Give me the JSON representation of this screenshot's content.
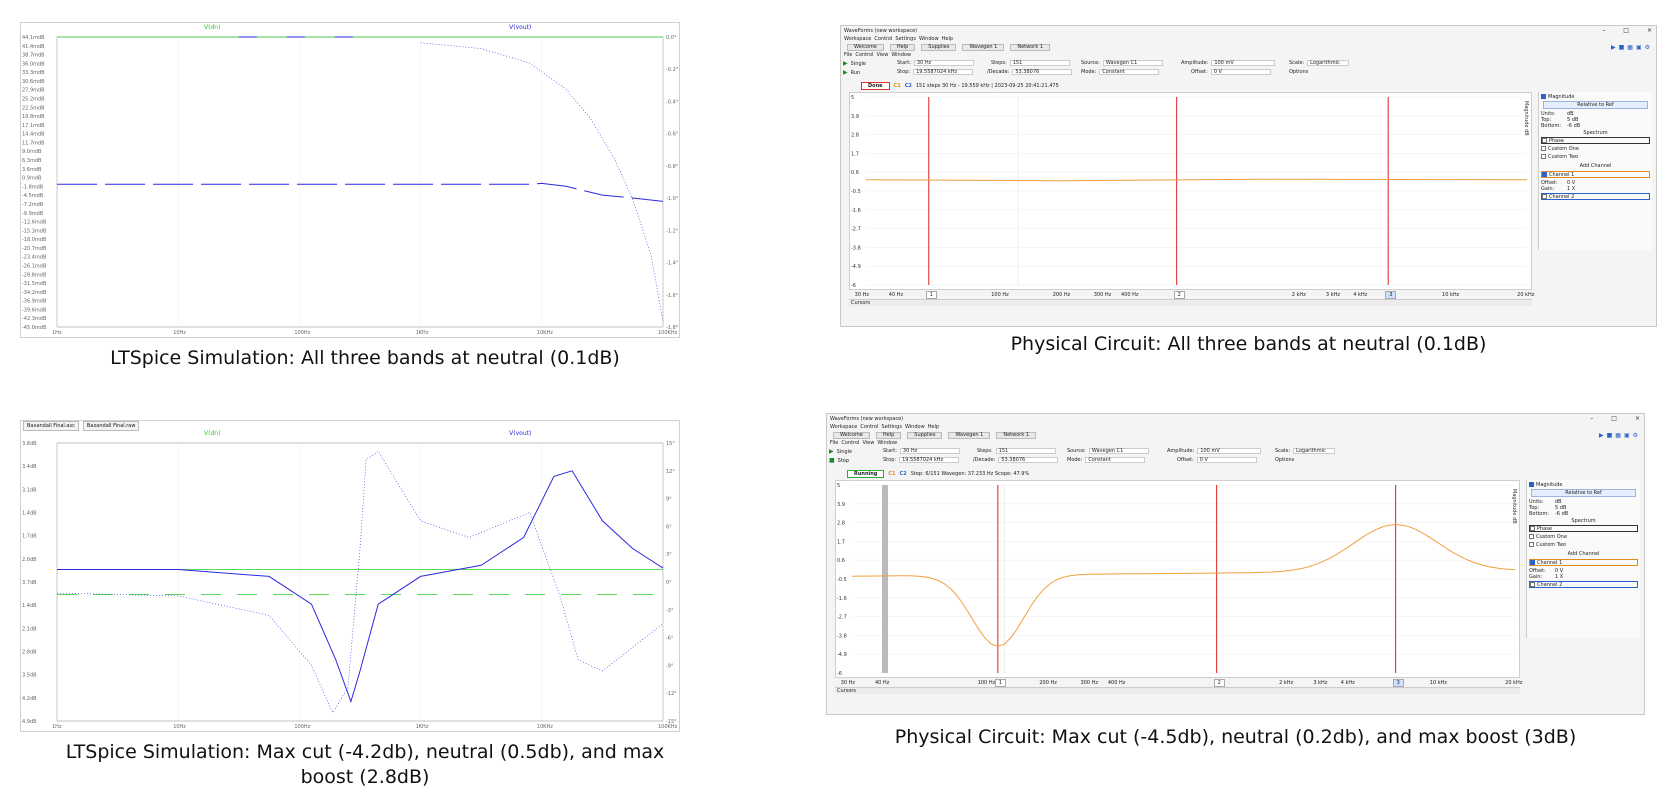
{
  "captions": {
    "top_left": "LTSpice Simulation: All three bands at neutral (0.1dB)",
    "top_right": "Physical Circuit: All three bands at neutral (0.1dB)",
    "bottom_left_line1": "LTSpice Simulation: Max cut (-4.2db), neutral (0.5db), and max",
    "bottom_left_line2": "boost (2.8dB)",
    "bottom_right": "Physical Circuit: Max cut (-4.5db), neutral (0.2db), and max boost (3dB)"
  },
  "lt1": {
    "legend_left": "V(dn)",
    "legend_right": "V(vout)",
    "y_ticks": [
      "44.1mdB",
      "41.4mdB",
      "38.7mdB",
      "36.0mdB",
      "33.3mdB",
      "30.6mdB",
      "27.9mdB",
      "25.2mdB",
      "22.5mdB",
      "19.8mdB",
      "17.1mdB",
      "14.4mdB",
      "11.7mdB",
      "9.0mdB",
      "6.3mdB",
      "3.6mdB",
      "0.9mdB",
      "-1.8mdB",
      "-4.5mdB",
      "-7.2mdB",
      "-9.9mdB",
      "-12.6mdB",
      "-15.3mdB",
      "-18.0mdB",
      "-20.7mdB",
      "-23.4mdB",
      "-26.1mdB",
      "-28.8mdB",
      "-31.5mdB",
      "-34.2mdB",
      "-36.9mdB",
      "-39.6mdB",
      "-42.3mdB",
      "-45.0mdB"
    ],
    "y2_ticks": [
      "0.0°",
      "-0.2°",
      "-0.4°",
      "-0.6°",
      "-0.8°",
      "-1.0°",
      "-1.2°",
      "-1.4°",
      "-1.6°",
      "-1.8°"
    ],
    "x_ticks": [
      "1Hz",
      "10Hz",
      "100Hz",
      "1KHz",
      "10KHz",
      "100KHz"
    ]
  },
  "lt2": {
    "tabs": [
      "Baxandall Final.asc",
      "Baxandall Final.raw"
    ],
    "legend_left": "V(dn)",
    "legend_right": "V(vout)",
    "y_ticks": [
      "3.8dB",
      "3.4dB",
      "3.1dB",
      "1.4dB",
      "1.7dB",
      "2.0dB",
      "3.7dB",
      "1.4dB",
      "2.1dB",
      "2.8dB",
      "3.5dB",
      "4.2dB",
      "4.9dB"
    ],
    "y2_ticks": [
      "15°",
      "12°",
      "9°",
      "6°",
      "3°",
      "0°",
      "-3°",
      "-6°",
      "-9°",
      "-12°",
      "-15°"
    ],
    "x_ticks": [
      "1Hz",
      "10Hz",
      "100Hz",
      "1KHz",
      "10KHz",
      "100KHz"
    ]
  },
  "wf_common": {
    "window_title": "WaveForms (new workspace)",
    "menu1": [
      "Workspace",
      "Control",
      "Settings",
      "Window",
      "Help"
    ],
    "tabs": [
      "Welcome",
      "Help",
      "Supplies",
      "Wavegen 1",
      "Network 1"
    ],
    "menu2": [
      "File",
      "Control",
      "View",
      "Window"
    ],
    "single": "Single",
    "start_label": "Start:",
    "start_val": "30 Hz",
    "stop_label": "Stop:",
    "stop_val": "19.5587024 kHz",
    "steps_label": "Steps:",
    "steps_val": "151",
    "decade_label": "/Decade:",
    "decade_val": "53.38076",
    "source_label": "Source:",
    "source_val": "Wavegen C1",
    "mode_label": "Mode:",
    "mode_val": "Constant",
    "amplitude_label": "Amplitude:",
    "amplitude_val": "100 mV",
    "offset_label": "Offset:",
    "offset_val": "0 V",
    "scale_label": "Scale:",
    "scale_val": "Logarithmic",
    "options": "Options",
    "y_ticks": [
      "5",
      "3.9",
      "2.8",
      "1.7",
      "0.6",
      "-0.5",
      "-1.6",
      "-2.7",
      "-3.8",
      "-4.9",
      "-6"
    ],
    "y_axis_label": "Magnitude dB",
    "x_ticks": [
      "30 Hz",
      "40 Hz",
      "100 Hz",
      "200 Hz",
      "300 Hz",
      "400 Hz",
      "2 kHz",
      "3 kHz",
      "4 kHz",
      "10 kHz",
      "20 kHz"
    ],
    "cursor_labels": [
      "1",
      "2",
      "3"
    ],
    "cursors": "Cursors",
    "side": {
      "magnitude": "Magnitude",
      "relative": "Relative to Ref",
      "units_label": "Units:",
      "units_val": "dB",
      "top_label": "Top:",
      "top_val": "5 dB",
      "bottom_label": "Bottom:",
      "bottom_val": "-6 dB",
      "spectrum": "Spectrum",
      "phase": "Phase",
      "custom_one": "Custom One",
      "custom_two": "Custom Two",
      "add_channel": "Add Channel",
      "channel1": "Channel 1",
      "offset_label": "Offset:",
      "offset_val": "0 V",
      "gain_label": "Gain:",
      "gain_val": "1 X",
      "channel2": "Channel 2"
    }
  },
  "wf1": {
    "run_label": "Run",
    "status": "Done",
    "info": "151 steps  30 Hz - 19.559 kHz  |  2023-09-25 20:41:21.475",
    "channels": [
      "C1",
      "C2"
    ]
  },
  "wf2": {
    "run_label": "Stop",
    "status": "Running",
    "info": "Step: 6/151  Wavegen: 37.233 Hz  Scope: 47.9%",
    "channels": [
      "C1",
      "C2"
    ]
  },
  "colors": {
    "lt_blue": "#2a2ae0",
    "lt_green": "#22cc22",
    "wf_orange": "#f0a040",
    "wf_cursor": "#e02020"
  }
}
